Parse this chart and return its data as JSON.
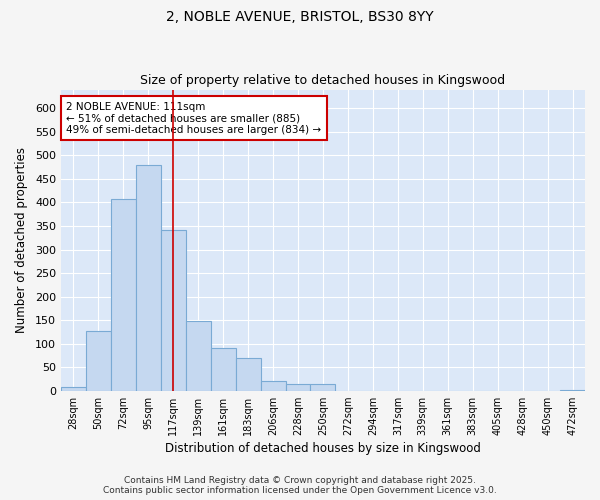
{
  "title_line1": "2, NOBLE AVENUE, BRISTOL, BS30 8YY",
  "title_line2": "Size of property relative to detached houses in Kingswood",
  "xlabel": "Distribution of detached houses by size in Kingswood",
  "ylabel": "Number of detached properties",
  "fig_bg_color": "#f5f5f5",
  "plot_bg_color": "#dce8f8",
  "bar_color": "#c5d8f0",
  "bar_edge_color": "#7aaad4",
  "annotation_title": "2 NOBLE AVENUE: 111sqm",
  "annotation_line2": "← 51% of detached houses are smaller (885)",
  "annotation_line3": "49% of semi-detached houses are larger (834) →",
  "vline_x_idx": 4,
  "vline_color": "#cc0000",
  "categories": [
    "28sqm",
    "50sqm",
    "72sqm",
    "95sqm",
    "117sqm",
    "139sqm",
    "161sqm",
    "183sqm",
    "206sqm",
    "228sqm",
    "250sqm",
    "272sqm",
    "294sqm",
    "317sqm",
    "339sqm",
    "361sqm",
    "383sqm",
    "405sqm",
    "428sqm",
    "450sqm",
    "472sqm"
  ],
  "values": [
    8,
    127,
    408,
    480,
    342,
    148,
    90,
    70,
    20,
    15,
    15,
    0,
    0,
    0,
    0,
    0,
    0,
    0,
    0,
    0,
    2
  ],
  "ylim": [
    0,
    640
  ],
  "yticks": [
    0,
    50,
    100,
    150,
    200,
    250,
    300,
    350,
    400,
    450,
    500,
    550,
    600
  ],
  "footer_line1": "Contains HM Land Registry data © Crown copyright and database right 2025.",
  "footer_line2": "Contains public sector information licensed under the Open Government Licence v3.0.",
  "figsize": [
    6.0,
    5.0
  ],
  "dpi": 100
}
